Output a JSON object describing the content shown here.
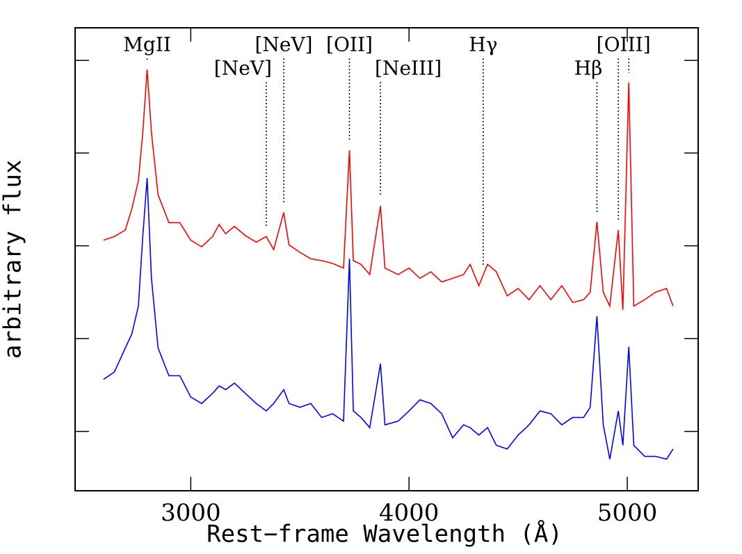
{
  "chart_data": {
    "type": "line",
    "xlabel": "Rest−frame Wavelength (Å)",
    "ylabel": "arbitrary flux",
    "x": [
      2600,
      2650,
      2700,
      2730,
      2760,
      2780,
      2800,
      2820,
      2850,
      2900,
      2950,
      3000,
      3050,
      3100,
      3130,
      3160,
      3200,
      3250,
      3300,
      3346,
      3380,
      3426,
      3450,
      3500,
      3550,
      3600,
      3650,
      3700,
      3727,
      3745,
      3780,
      3820,
      3869,
      3890,
      3950,
      4000,
      4050,
      4100,
      4150,
      4200,
      4250,
      4280,
      4320,
      4360,
      4400,
      4450,
      4500,
      4550,
      4600,
      4650,
      4700,
      4750,
      4800,
      4830,
      4861,
      4890,
      4920,
      4959,
      4980,
      5007,
      5030,
      5080,
      5130,
      5180,
      5210
    ],
    "series": [
      {
        "color": "#ff0000",
        "values": [
          3.06,
          3.1,
          3.17,
          3.4,
          3.7,
          4.22,
          4.9,
          4.22,
          3.55,
          3.25,
          3.25,
          3.06,
          2.99,
          3.1,
          3.23,
          3.13,
          3.21,
          3.11,
          3.04,
          3.1,
          2.96,
          3.36,
          3.01,
          2.93,
          2.86,
          2.84,
          2.81,
          2.76,
          4.03,
          2.84,
          2.8,
          2.69,
          3.43,
          2.76,
          2.69,
          2.76,
          2.65,
          2.72,
          2.61,
          2.65,
          2.69,
          2.8,
          2.57,
          2.8,
          2.72,
          2.46,
          2.54,
          2.42,
          2.57,
          2.42,
          2.57,
          2.39,
          2.42,
          2.5,
          3.26,
          2.5,
          2.35,
          3.17,
          2.31,
          4.76,
          2.35,
          2.42,
          2.5,
          2.54,
          2.35
        ]
      },
      {
        "color": "#0000ff",
        "values": [
          1.56,
          1.64,
          1.9,
          2.05,
          2.35,
          3.1,
          3.73,
          2.65,
          1.9,
          1.6,
          1.6,
          1.37,
          1.3,
          1.41,
          1.49,
          1.45,
          1.52,
          1.41,
          1.3,
          1.22,
          1.3,
          1.45,
          1.3,
          1.26,
          1.3,
          1.15,
          1.19,
          1.11,
          2.86,
          1.22,
          1.15,
          1.04,
          1.73,
          1.07,
          1.11,
          1.22,
          1.34,
          1.3,
          1.19,
          0.93,
          1.07,
          1.04,
          0.96,
          1.04,
          0.85,
          0.81,
          0.96,
          1.07,
          1.22,
          1.19,
          1.07,
          1.15,
          1.15,
          1.26,
          2.24,
          1.07,
          0.7,
          1.22,
          0.85,
          1.91,
          0.85,
          0.73,
          0.73,
          0.7,
          0.81
        ]
      }
    ],
    "xlim": [
      2470,
      5325
    ],
    "xticks": [
      3000,
      4000,
      5000
    ],
    "ylim": [
      0.36,
      5.35
    ],
    "yticks": [
      1,
      2,
      3,
      4,
      5
    ],
    "annotations": [
      {
        "text": "MgII",
        "x": [
          2800
        ]
      },
      {
        "text": "[NeV]",
        "x": [
          3346
        ]
      },
      {
        "text": "[NeV]",
        "x": [
          3426
        ]
      },
      {
        "text": "[OII]",
        "x": [
          3727
        ]
      },
      {
        "text": "[NeIII]",
        "x": [
          3869
        ]
      },
      {
        "text": "Hγ",
        "x": [
          4340
        ]
      },
      {
        "text": "Hβ",
        "x": [
          4861
        ]
      },
      {
        "text": "[OIII]",
        "x": [
          4959,
          5007
        ]
      }
    ]
  }
}
